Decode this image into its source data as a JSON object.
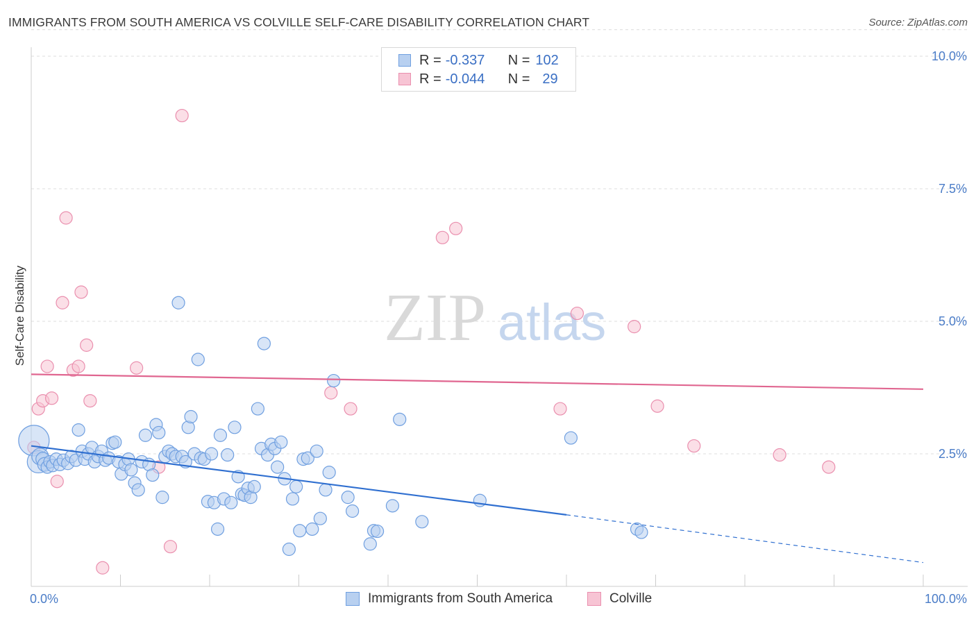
{
  "header": {
    "title": "IMMIGRANTS FROM SOUTH AMERICA VS COLVILLE SELF-CARE DISABILITY CORRELATION CHART",
    "source": "Source: ZipAtlas.com"
  },
  "watermark": {
    "zip": "ZIP",
    "atlas": "atlas"
  },
  "legend": {
    "rows": [
      {
        "r_label": "R =",
        "r_value": "-0.337",
        "n_label": "N =",
        "n_value": "102"
      },
      {
        "r_label": "R =",
        "r_value": "-0.044",
        "n_label": "N =",
        "n_value": "29"
      }
    ]
  },
  "chart_data": {
    "type": "scatter",
    "title": "IMMIGRANTS FROM SOUTH AMERICA VS COLVILLE SELF-CARE DISABILITY CORRELATION CHART",
    "xlabel": "",
    "ylabel": "Self-Care Disability",
    "xlim": [
      0,
      100
    ],
    "ylim": [
      0,
      10.5
    ],
    "x_tick_labels": [
      "0.0%",
      "100.0%"
    ],
    "y_ticks": [
      2.5,
      5.0,
      7.5,
      10.0
    ],
    "y_tick_labels": [
      "2.5%",
      "5.0%",
      "7.5%",
      "10.0%"
    ],
    "grid": true,
    "legend_position": "top-center",
    "colors": {
      "blue_fill": "#b8d0f0",
      "blue_stroke": "#6f9fe0",
      "blue_line": "#2f6fd0",
      "pink_fill": "#f7c4d4",
      "pink_stroke": "#ea8fae",
      "pink_line": "#e06690"
    },
    "series": [
      {
        "name": "Immigrants from South America",
        "R": -0.337,
        "N": 102,
        "trend": {
          "x0": 0,
          "y0": 2.65,
          "x1": 60,
          "y1": 1.35,
          "dash_to_x": 100,
          "dash_to_y": 0.45
        },
        "points": [
          [
            0.3,
            2.75,
            22
          ],
          [
            0.8,
            2.35,
            16
          ],
          [
            1.0,
            2.45,
            12
          ],
          [
            1.3,
            2.4,
            10
          ],
          [
            1.5,
            2.3,
            10
          ],
          [
            1.8,
            2.25,
            9
          ],
          [
            2.1,
            2.35,
            9
          ],
          [
            2.4,
            2.28,
            9
          ],
          [
            2.8,
            2.4,
            9
          ],
          [
            3.2,
            2.3,
            9
          ],
          [
            3.6,
            2.38,
            9
          ],
          [
            4.1,
            2.32,
            9
          ],
          [
            4.5,
            2.45,
            9
          ],
          [
            5.0,
            2.38,
            9
          ],
          [
            5.3,
            2.95,
            9
          ],
          [
            5.7,
            2.55,
            9
          ],
          [
            6.0,
            2.4,
            9
          ],
          [
            6.4,
            2.5,
            9
          ],
          [
            6.8,
            2.62,
            9
          ],
          [
            7.1,
            2.35,
            9
          ],
          [
            7.5,
            2.45,
            9
          ],
          [
            7.9,
            2.55,
            9
          ],
          [
            8.3,
            2.38,
            9
          ],
          [
            8.7,
            2.42,
            9
          ],
          [
            9.1,
            2.7,
            9
          ],
          [
            9.4,
            2.72,
            9
          ],
          [
            9.8,
            2.35,
            9
          ],
          [
            10.1,
            2.12,
            9
          ],
          [
            10.5,
            2.3,
            9
          ],
          [
            10.9,
            2.4,
            9
          ],
          [
            11.2,
            2.2,
            9
          ],
          [
            11.6,
            1.95,
            9
          ],
          [
            12.0,
            1.82,
            9
          ],
          [
            12.4,
            2.35,
            9
          ],
          [
            12.8,
            2.85,
            9
          ],
          [
            13.2,
            2.3,
            9
          ],
          [
            13.6,
            2.1,
            9
          ],
          [
            14.0,
            3.05,
            9
          ],
          [
            14.3,
            2.9,
            9
          ],
          [
            14.7,
            1.68,
            9
          ],
          [
            15.0,
            2.45,
            9
          ],
          [
            15.4,
            2.55,
            9
          ],
          [
            15.8,
            2.5,
            9
          ],
          [
            16.2,
            2.45,
            9
          ],
          [
            16.5,
            5.35,
            9
          ],
          [
            16.9,
            2.45,
            9
          ],
          [
            17.3,
            2.35,
            9
          ],
          [
            17.6,
            3.0,
            9
          ],
          [
            17.9,
            3.2,
            9
          ],
          [
            18.3,
            2.5,
            9
          ],
          [
            18.7,
            4.28,
            9
          ],
          [
            19.0,
            2.42,
            9
          ],
          [
            19.4,
            2.4,
            9
          ],
          [
            19.8,
            1.6,
            9
          ],
          [
            20.2,
            2.5,
            9
          ],
          [
            20.5,
            1.58,
            9
          ],
          [
            20.9,
            1.08,
            9
          ],
          [
            21.2,
            2.85,
            9
          ],
          [
            21.6,
            1.65,
            9
          ],
          [
            22.0,
            2.48,
            9
          ],
          [
            22.4,
            1.58,
            9
          ],
          [
            22.8,
            3.0,
            9
          ],
          [
            23.2,
            2.07,
            9
          ],
          [
            23.6,
            1.74,
            9
          ],
          [
            23.9,
            1.72,
            9
          ],
          [
            24.3,
            1.85,
            9
          ],
          [
            24.6,
            1.68,
            9
          ],
          [
            25.0,
            1.88,
            9
          ],
          [
            25.4,
            3.35,
            9
          ],
          [
            25.8,
            2.6,
            9
          ],
          [
            26.1,
            4.58,
            9
          ],
          [
            26.5,
            2.48,
            9
          ],
          [
            26.9,
            2.68,
            9
          ],
          [
            27.3,
            2.6,
            9
          ],
          [
            27.6,
            2.25,
            9
          ],
          [
            28.0,
            2.72,
            9
          ],
          [
            28.4,
            2.03,
            9
          ],
          [
            28.9,
            0.7,
            9
          ],
          [
            29.3,
            1.65,
            9
          ],
          [
            29.7,
            1.88,
            9
          ],
          [
            30.1,
            1.05,
            9
          ],
          [
            30.5,
            2.4,
            9
          ],
          [
            31.0,
            2.42,
            9
          ],
          [
            31.5,
            1.08,
            9
          ],
          [
            32.0,
            2.55,
            9
          ],
          [
            32.4,
            1.28,
            9
          ],
          [
            33.0,
            1.82,
            9
          ],
          [
            33.4,
            2.15,
            9
          ],
          [
            33.9,
            3.88,
            9
          ],
          [
            35.5,
            1.68,
            9
          ],
          [
            36.0,
            1.42,
            9
          ],
          [
            38.0,
            0.8,
            9
          ],
          [
            38.4,
            1.05,
            9
          ],
          [
            38.8,
            1.04,
            9
          ],
          [
            40.5,
            1.52,
            9
          ],
          [
            41.3,
            3.15,
            9
          ],
          [
            43.8,
            1.22,
            9
          ],
          [
            50.3,
            1.62,
            9
          ],
          [
            60.5,
            2.8,
            9
          ],
          [
            67.9,
            1.08,
            9
          ],
          [
            68.4,
            1.02,
            9
          ]
        ]
      },
      {
        "name": "Colville",
        "R": -0.044,
        "N": 29,
        "trend": {
          "x0": 0,
          "y0": 4.0,
          "x1": 100,
          "y1": 3.72
        },
        "points": [
          [
            0.3,
            2.62,
            9
          ],
          [
            0.8,
            3.35,
            9
          ],
          [
            1.3,
            3.5,
            9
          ],
          [
            1.8,
            4.15,
            9
          ],
          [
            2.3,
            3.55,
            9
          ],
          [
            2.9,
            1.98,
            9
          ],
          [
            3.5,
            5.35,
            9
          ],
          [
            3.9,
            6.95,
            9
          ],
          [
            4.7,
            4.08,
            9
          ],
          [
            5.3,
            4.15,
            9
          ],
          [
            5.6,
            5.55,
            9
          ],
          [
            6.2,
            4.55,
            9
          ],
          [
            6.6,
            3.5,
            9
          ],
          [
            8.0,
            0.35,
            9
          ],
          [
            11.8,
            4.12,
            9
          ],
          [
            14.3,
            2.25,
            9
          ],
          [
            15.6,
            0.75,
            9
          ],
          [
            16.9,
            8.88,
            9
          ],
          [
            33.6,
            3.65,
            9
          ],
          [
            35.8,
            3.35,
            9
          ],
          [
            46.1,
            6.58,
            9
          ],
          [
            47.6,
            6.75,
            9
          ],
          [
            59.3,
            3.35,
            9
          ],
          [
            61.2,
            5.15,
            9
          ],
          [
            67.6,
            4.9,
            9
          ],
          [
            70.2,
            3.4,
            9
          ],
          [
            74.3,
            2.65,
            9
          ],
          [
            83.9,
            2.48,
            9
          ],
          [
            89.4,
            2.25,
            9
          ]
        ]
      }
    ]
  },
  "bottom_legend": {
    "items": [
      {
        "label": "Immigrants from South America"
      },
      {
        "label": "Colville"
      }
    ]
  }
}
